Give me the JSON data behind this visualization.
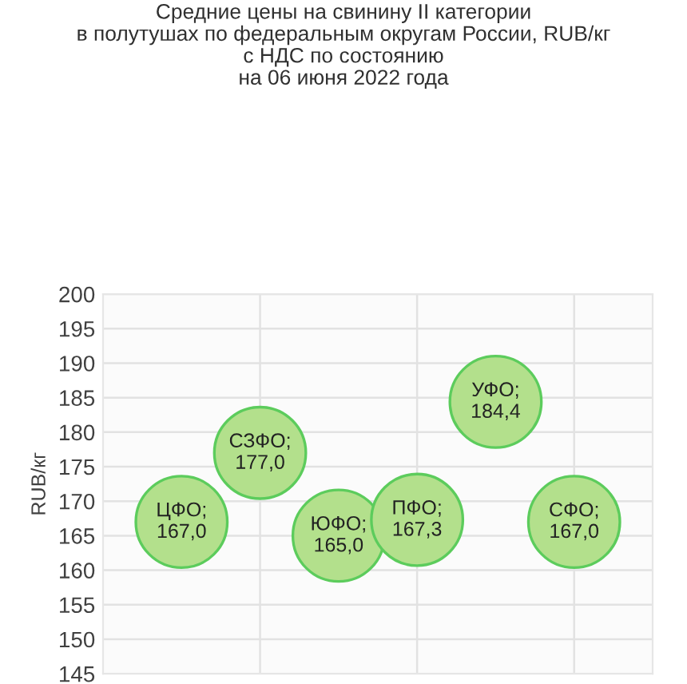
{
  "chart_data": {
    "type": "bubble",
    "title": "Средние цены на свинину II категории\nв полутушах по федеральным округам России, RUB/кг\nс НДС по состоянию\nна 06 июня 2022 года",
    "ylabel": "RUB/кг",
    "categories": [
      null,
      null,
      null,
      null,
      null,
      null
    ],
    "values": [
      167.0,
      177.0,
      165.0,
      167.3,
      184.4,
      167.0
    ],
    "sizes": [
      1,
      1,
      1,
      1,
      1,
      1
    ],
    "color": "#b3e08c",
    "value_labels": [
      "ЦФО;\n167,0",
      "СЗФО;\n177,0",
      "ЮФО;\n165,0",
      "ПФО;\n167,3",
      "УФО;\n184,4",
      "СФО;\n167,0"
    ],
    "ylim": [
      145,
      200
    ],
    "yticks": [
      145,
      150,
      155,
      160,
      165,
      170,
      175,
      180,
      185,
      190,
      195,
      200
    ],
    "grid": true
  }
}
